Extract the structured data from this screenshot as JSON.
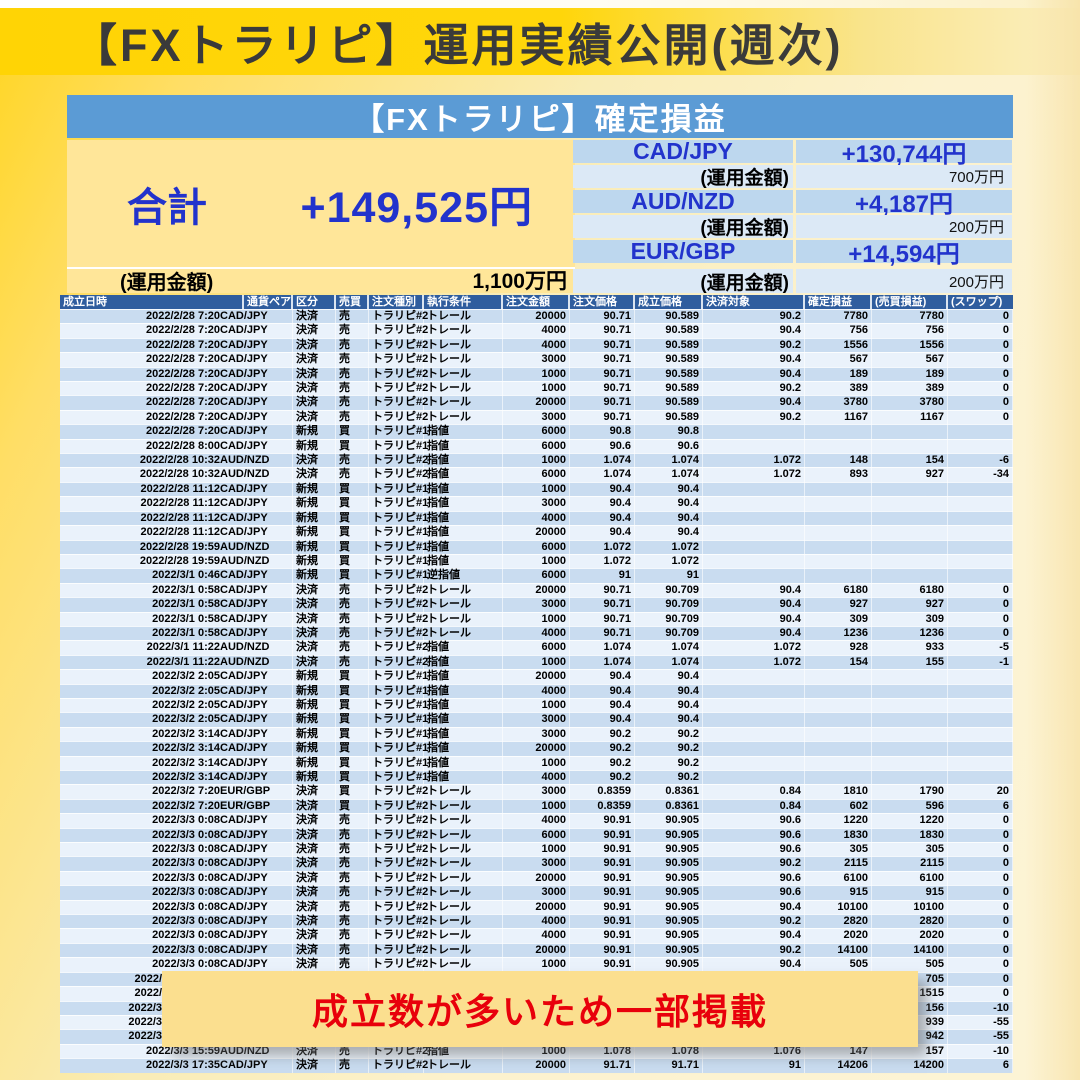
{
  "page_title": "【FXトラリピ】運用実績公開(週次)",
  "section_title": "【FXトラリピ】確定損益",
  "summary": {
    "total_label": "合計",
    "total_value": "+149,525円",
    "fund_label": "(運用金額)",
    "total_fund_value": "1,100万円",
    "pairs": [
      {
        "name": "CAD/JPY",
        "profit": "+130,744円",
        "fund_label": "(運用金額)",
        "fund": "700万円"
      },
      {
        "name": "AUD/NZD",
        "profit": "+4,187円",
        "fund_label": "(運用金額)",
        "fund": "200万円"
      },
      {
        "name": "EUR/GBP",
        "profit": "+14,594円",
        "fund_label": "(運用金額)",
        "fund": "200万円"
      }
    ]
  },
  "overlay_note": "成立数が多いため一部掲載",
  "table": {
    "columns": [
      "成立日時",
      "通貨ペア",
      "区分",
      "売買",
      "注文種別",
      "執行条件",
      "注文金額",
      "注文価格",
      "成立価格",
      "決済対象",
      "確定損益",
      "(売買損益)",
      "(スワップ)"
    ],
    "cut_row_indices": [
      46,
      47,
      48,
      49,
      50
    ],
    "rows": [
      [
        "2022/2/28 7:20",
        "CAD/JPY",
        "決済",
        "売",
        "トラリピ#2",
        "トレール",
        "20000",
        "90.71",
        "90.589",
        "90.2",
        "7780",
        "7780",
        "0"
      ],
      [
        "2022/2/28 7:20",
        "CAD/JPY",
        "決済",
        "売",
        "トラリピ#2",
        "トレール",
        "4000",
        "90.71",
        "90.589",
        "90.4",
        "756",
        "756",
        "0"
      ],
      [
        "2022/2/28 7:20",
        "CAD/JPY",
        "決済",
        "売",
        "トラリピ#2",
        "トレール",
        "4000",
        "90.71",
        "90.589",
        "90.2",
        "1556",
        "1556",
        "0"
      ],
      [
        "2022/2/28 7:20",
        "CAD/JPY",
        "決済",
        "売",
        "トラリピ#2",
        "トレール",
        "3000",
        "90.71",
        "90.589",
        "90.4",
        "567",
        "567",
        "0"
      ],
      [
        "2022/2/28 7:20",
        "CAD/JPY",
        "決済",
        "売",
        "トラリピ#2",
        "トレール",
        "1000",
        "90.71",
        "90.589",
        "90.4",
        "189",
        "189",
        "0"
      ],
      [
        "2022/2/28 7:20",
        "CAD/JPY",
        "決済",
        "売",
        "トラリピ#2",
        "トレール",
        "1000",
        "90.71",
        "90.589",
        "90.2",
        "389",
        "389",
        "0"
      ],
      [
        "2022/2/28 7:20",
        "CAD/JPY",
        "決済",
        "売",
        "トラリピ#2",
        "トレール",
        "20000",
        "90.71",
        "90.589",
        "90.4",
        "3780",
        "3780",
        "0"
      ],
      [
        "2022/2/28 7:20",
        "CAD/JPY",
        "決済",
        "売",
        "トラリピ#2",
        "トレール",
        "3000",
        "90.71",
        "90.589",
        "90.2",
        "1167",
        "1167",
        "0"
      ],
      [
        "2022/2/28 7:20",
        "CAD/JPY",
        "新規",
        "買",
        "トラリピ#1",
        "指値",
        "6000",
        "90.8",
        "90.8",
        "",
        "",
        "",
        ""
      ],
      [
        "2022/2/28 8:00",
        "CAD/JPY",
        "新規",
        "買",
        "トラリピ#1",
        "指値",
        "6000",
        "90.6",
        "90.6",
        "",
        "",
        "",
        ""
      ],
      [
        "2022/2/28 10:32",
        "AUD/NZD",
        "決済",
        "売",
        "トラリピ#2",
        "指値",
        "1000",
        "1.074",
        "1.074",
        "1.072",
        "148",
        "154",
        "-6"
      ],
      [
        "2022/2/28 10:32",
        "AUD/NZD",
        "決済",
        "売",
        "トラリピ#2",
        "指値",
        "6000",
        "1.074",
        "1.074",
        "1.072",
        "893",
        "927",
        "-34"
      ],
      [
        "2022/2/28 11:12",
        "CAD/JPY",
        "新規",
        "買",
        "トラリピ#1",
        "指値",
        "1000",
        "90.4",
        "90.4",
        "",
        "",
        "",
        ""
      ],
      [
        "2022/2/28 11:12",
        "CAD/JPY",
        "新規",
        "買",
        "トラリピ#1",
        "指値",
        "3000",
        "90.4",
        "90.4",
        "",
        "",
        "",
        ""
      ],
      [
        "2022/2/28 11:12",
        "CAD/JPY",
        "新規",
        "買",
        "トラリピ#1",
        "指値",
        "4000",
        "90.4",
        "90.4",
        "",
        "",
        "",
        ""
      ],
      [
        "2022/2/28 11:12",
        "CAD/JPY",
        "新規",
        "買",
        "トラリピ#1",
        "指値",
        "20000",
        "90.4",
        "90.4",
        "",
        "",
        "",
        ""
      ],
      [
        "2022/2/28 19:59",
        "AUD/NZD",
        "新規",
        "買",
        "トラリピ#1",
        "指値",
        "6000",
        "1.072",
        "1.072",
        "",
        "",
        "",
        ""
      ],
      [
        "2022/2/28 19:59",
        "AUD/NZD",
        "新規",
        "買",
        "トラリピ#1",
        "指値",
        "1000",
        "1.072",
        "1.072",
        "",
        "",
        "",
        ""
      ],
      [
        "2022/3/1 0:46",
        "CAD/JPY",
        "新規",
        "買",
        "トラリピ#1",
        "逆指値",
        "6000",
        "91",
        "91",
        "",
        "",
        "",
        ""
      ],
      [
        "2022/3/1 0:58",
        "CAD/JPY",
        "決済",
        "売",
        "トラリピ#2",
        "トレール",
        "20000",
        "90.71",
        "90.709",
        "90.4",
        "6180",
        "6180",
        "0"
      ],
      [
        "2022/3/1 0:58",
        "CAD/JPY",
        "決済",
        "売",
        "トラリピ#2",
        "トレール",
        "3000",
        "90.71",
        "90.709",
        "90.4",
        "927",
        "927",
        "0"
      ],
      [
        "2022/3/1 0:58",
        "CAD/JPY",
        "決済",
        "売",
        "トラリピ#2",
        "トレール",
        "1000",
        "90.71",
        "90.709",
        "90.4",
        "309",
        "309",
        "0"
      ],
      [
        "2022/3/1 0:58",
        "CAD/JPY",
        "決済",
        "売",
        "トラリピ#2",
        "トレール",
        "4000",
        "90.71",
        "90.709",
        "90.4",
        "1236",
        "1236",
        "0"
      ],
      [
        "2022/3/1 11:22",
        "AUD/NZD",
        "決済",
        "売",
        "トラリピ#2",
        "指値",
        "6000",
        "1.074",
        "1.074",
        "1.072",
        "928",
        "933",
        "-5"
      ],
      [
        "2022/3/1 11:22",
        "AUD/NZD",
        "決済",
        "売",
        "トラリピ#2",
        "指値",
        "1000",
        "1.074",
        "1.074",
        "1.072",
        "154",
        "155",
        "-1"
      ],
      [
        "2022/3/2 2:05",
        "CAD/JPY",
        "新規",
        "買",
        "トラリピ#1",
        "指値",
        "20000",
        "90.4",
        "90.4",
        "",
        "",
        "",
        ""
      ],
      [
        "2022/3/2 2:05",
        "CAD/JPY",
        "新規",
        "買",
        "トラリピ#1",
        "指値",
        "4000",
        "90.4",
        "90.4",
        "",
        "",
        "",
        ""
      ],
      [
        "2022/3/2 2:05",
        "CAD/JPY",
        "新規",
        "買",
        "トラリピ#1",
        "指値",
        "1000",
        "90.4",
        "90.4",
        "",
        "",
        "",
        ""
      ],
      [
        "2022/3/2 2:05",
        "CAD/JPY",
        "新規",
        "買",
        "トラリピ#1",
        "指値",
        "3000",
        "90.4",
        "90.4",
        "",
        "",
        "",
        ""
      ],
      [
        "2022/3/2 3:14",
        "CAD/JPY",
        "新規",
        "買",
        "トラリピ#1",
        "指値",
        "3000",
        "90.2",
        "90.2",
        "",
        "",
        "",
        ""
      ],
      [
        "2022/3/2 3:14",
        "CAD/JPY",
        "新規",
        "買",
        "トラリピ#1",
        "指値",
        "20000",
        "90.2",
        "90.2",
        "",
        "",
        "",
        ""
      ],
      [
        "2022/3/2 3:14",
        "CAD/JPY",
        "新規",
        "買",
        "トラリピ#1",
        "指値",
        "1000",
        "90.2",
        "90.2",
        "",
        "",
        "",
        ""
      ],
      [
        "2022/3/2 3:14",
        "CAD/JPY",
        "新規",
        "買",
        "トラリピ#1",
        "指値",
        "4000",
        "90.2",
        "90.2",
        "",
        "",
        "",
        ""
      ],
      [
        "2022/3/2 7:20",
        "EUR/GBP",
        "決済",
        "買",
        "トラリピ#2",
        "トレール",
        "3000",
        "0.8359",
        "0.8361",
        "0.84",
        "1810",
        "1790",
        "20"
      ],
      [
        "2022/3/2 7:20",
        "EUR/GBP",
        "決済",
        "買",
        "トラリピ#2",
        "トレール",
        "1000",
        "0.8359",
        "0.8361",
        "0.84",
        "602",
        "596",
        "6"
      ],
      [
        "2022/3/3 0:08",
        "CAD/JPY",
        "決済",
        "売",
        "トラリピ#2",
        "トレール",
        "4000",
        "90.91",
        "90.905",
        "90.6",
        "1220",
        "1220",
        "0"
      ],
      [
        "2022/3/3 0:08",
        "CAD/JPY",
        "決済",
        "売",
        "トラリピ#2",
        "トレール",
        "6000",
        "90.91",
        "90.905",
        "90.6",
        "1830",
        "1830",
        "0"
      ],
      [
        "2022/3/3 0:08",
        "CAD/JPY",
        "決済",
        "売",
        "トラリピ#2",
        "トレール",
        "1000",
        "90.91",
        "90.905",
        "90.6",
        "305",
        "305",
        "0"
      ],
      [
        "2022/3/3 0:08",
        "CAD/JPY",
        "決済",
        "売",
        "トラリピ#2",
        "トレール",
        "3000",
        "90.91",
        "90.905",
        "90.2",
        "2115",
        "2115",
        "0"
      ],
      [
        "2022/3/3 0:08",
        "CAD/JPY",
        "決済",
        "売",
        "トラリピ#2",
        "トレール",
        "20000",
        "90.91",
        "90.905",
        "90.6",
        "6100",
        "6100",
        "0"
      ],
      [
        "2022/3/3 0:08",
        "CAD/JPY",
        "決済",
        "売",
        "トラリピ#2",
        "トレール",
        "3000",
        "90.91",
        "90.905",
        "90.6",
        "915",
        "915",
        "0"
      ],
      [
        "2022/3/3 0:08",
        "CAD/JPY",
        "決済",
        "売",
        "トラリピ#2",
        "トレール",
        "20000",
        "90.91",
        "90.905",
        "90.4",
        "10100",
        "10100",
        "0"
      ],
      [
        "2022/3/3 0:08",
        "CAD/JPY",
        "決済",
        "売",
        "トラリピ#2",
        "トレール",
        "4000",
        "90.91",
        "90.905",
        "90.2",
        "2820",
        "2820",
        "0"
      ],
      [
        "2022/3/3 0:08",
        "CAD/JPY",
        "決済",
        "売",
        "トラリピ#2",
        "トレール",
        "4000",
        "90.91",
        "90.905",
        "90.4",
        "2020",
        "2020",
        "0"
      ],
      [
        "2022/3/3 0:08",
        "CAD/JPY",
        "決済",
        "売",
        "トラリピ#2",
        "トレール",
        "20000",
        "90.91",
        "90.905",
        "90.2",
        "14100",
        "14100",
        "0"
      ],
      [
        "2022/3/3 0:08",
        "CAD/JPY",
        "決済",
        "売",
        "トラリピ#2",
        "トレール",
        "1000",
        "90.91",
        "90.905",
        "90.4",
        "505",
        "505",
        "0"
      ],
      [
        "2022/",
        "",
        "",
        "",
        "",
        "",
        "",
        "",
        "",
        "",
        "",
        "705",
        "0"
      ],
      [
        "2022/",
        "",
        "",
        "",
        "",
        "",
        "",
        "",
        "",
        "",
        "",
        "1515",
        "0"
      ],
      [
        "2022/3",
        "",
        "",
        "",
        "",
        "",
        "",
        "",
        "",
        "",
        "",
        "156",
        "-10"
      ],
      [
        "2022/3",
        "",
        "",
        "",
        "",
        "",
        "",
        "",
        "",
        "",
        "",
        "939",
        "-55"
      ],
      [
        "2022/3",
        "",
        "",
        "",
        "",
        "",
        "",
        "",
        "",
        "",
        "",
        "942",
        "-55"
      ],
      [
        "2022/3/3 15:59",
        "AUD/NZD",
        "決済",
        "売",
        "トラリピ#2",
        "指値",
        "1000",
        "1.078",
        "1.078",
        "1.076",
        "147",
        "157",
        "-10"
      ],
      [
        "2022/3/3 17:35",
        "CAD/JPY",
        "決済",
        "売",
        "トラリピ#2",
        "トレール",
        "20000",
        "91.71",
        "91.71",
        "91",
        "14206",
        "14200",
        "6"
      ]
    ]
  },
  "colors": {
    "gold": "#FFD405",
    "band_blue": "#5B9BD5",
    "header_blue": "#2F5D9E",
    "row_odd": "#C9DCF0",
    "row_even": "#EAF2FB",
    "pair_row": "#BDD7EE",
    "fund_row": "#DCE9F6",
    "total_bg": "#FFE699",
    "accent_blue": "#2233CC",
    "note_bg": "#FBDF8F",
    "note_red": "#E8000B"
  }
}
